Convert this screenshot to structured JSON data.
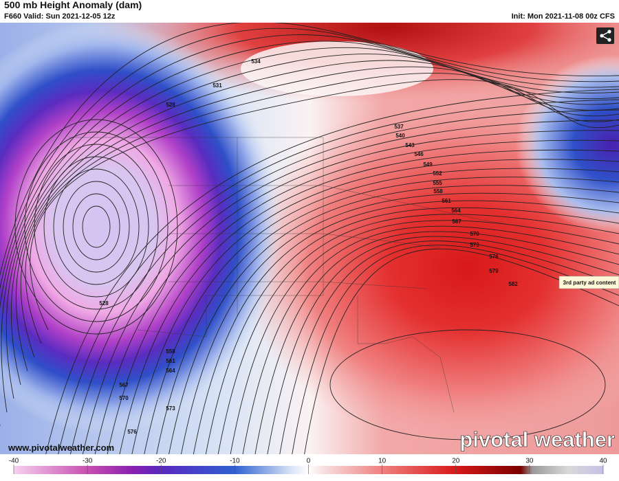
{
  "header": {
    "title": "500 mb Height Anomaly (dam)",
    "subtitle": "F660 Valid: Sun 2021-12-05 12z",
    "init": "Init: Mon 2021-11-08 00z CFS"
  },
  "map": {
    "contour_labels": [
      534,
      531,
      528,
      537,
      540,
      543,
      546,
      549,
      552,
      555,
      558,
      561,
      564,
      567,
      570,
      573,
      576,
      579,
      582,
      528,
      558,
      561,
      564,
      567,
      570,
      573,
      576
    ]
  },
  "ad": "3rd party ad content",
  "url": "www.pivotalweather.com",
  "watermark": "pivotal weather",
  "colorbar": {
    "range": [
      -40,
      40
    ],
    "ticks": [
      -40,
      -30,
      -20,
      -10,
      0,
      10,
      20,
      30,
      40
    ]
  }
}
